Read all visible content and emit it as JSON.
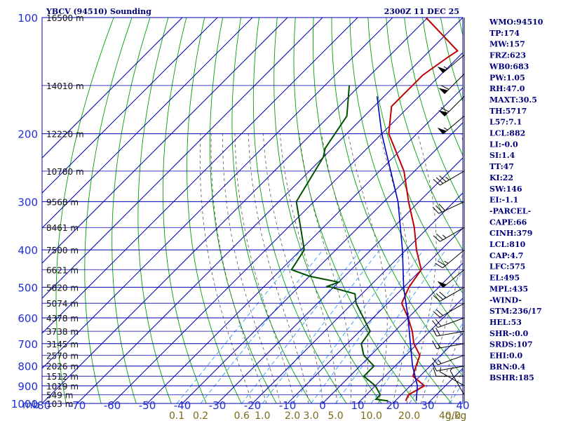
{
  "header": {
    "station": "YBCV (94510) Sounding",
    "time": "2300Z 11 DEC 25"
  },
  "indices": [
    "WMO:94510",
    "TP:174",
    "MW:157",
    "FRZ:623",
    "WB0:683",
    "PW:1.05",
    "RH:47.0",
    "MAXT:30.5",
    "TH:5717",
    "L57:7.1",
    "LCL:882",
    "LI:-0.0",
    "SI:1.4",
    "TT:47",
    "KI:22",
    "SW:146",
    "EI:-1.1",
    "-PARCEL-",
    "CAPE:66",
    "CINH:379",
    "LCL:810",
    "CAP:4.7",
    "LFC:575",
    "EL:495",
    "MPL:435",
    "-WIND-",
    "STM:236/17",
    "HEL:53",
    "SHR-:0.0",
    "SRDS:107",
    "EHI:0.0",
    "BRN:0.4",
    "BSHR:185"
  ],
  "colors": {
    "grid": "#0000b0",
    "dry_adiabat": "#00a000",
    "moist_adiabat": "#555555",
    "mixing_ratio": "#3399ff",
    "temperature": "#c00000",
    "dewpoint": "#005000",
    "parcel": "#0000c0",
    "wind": "#000000"
  },
  "chart_data": {
    "type": "line",
    "title": "YBCV (94510) Sounding",
    "subtitle": "2300Z 11 DEC 25",
    "xlabel": "",
    "ylabel": "mb",
    "pressure_ticks": [
      100,
      200,
      300,
      400,
      500,
      600,
      700,
      800,
      900,
      1000
    ],
    "temperature_ticks": [
      -80,
      -70,
      -60,
      -50,
      -40,
      -30,
      -20,
      -10,
      0,
      10,
      20,
      30,
      40
    ],
    "height_labels": [
      {
        "p": 100,
        "label": "16500 m"
      },
      {
        "p": 150,
        "label": "14010 m"
      },
      {
        "p": 200,
        "label": "12220 m"
      },
      {
        "p": 250,
        "label": "10780 m"
      },
      {
        "p": 300,
        "label": "9568 m"
      },
      {
        "p": 350,
        "label": "8461 m"
      },
      {
        "p": 400,
        "label": "7500 m"
      },
      {
        "p": 450,
        "label": "6621 m"
      },
      {
        "p": 500,
        "label": "5820 m"
      },
      {
        "p": 550,
        "label": "5074 m"
      },
      {
        "p": 600,
        "label": "4378 m"
      },
      {
        "p": 650,
        "label": "3738 m"
      },
      {
        "p": 700,
        "label": "3145 m"
      },
      {
        "p": 750,
        "label": "2570 m"
      },
      {
        "p": 800,
        "label": "2026 m"
      },
      {
        "p": 850,
        "label": "1512 m"
      },
      {
        "p": 900,
        "label": "1019 m"
      },
      {
        "p": 950,
        "label": "549 m"
      },
      {
        "p": 1000,
        "label": "103 m"
      }
    ],
    "mixing_ratio_labels": [
      "0.1",
      "0.2",
      "0.6",
      "1.0",
      "2.0",
      "3.0",
      "5.0",
      "10.0",
      "20.0",
      "40.0",
      "g/kg"
    ],
    "mixing_ratio_values": [
      0.1,
      0.2,
      0.6,
      1.0,
      2.0,
      3.0,
      5.0,
      10.0,
      20.0,
      40.0
    ],
    "series": [
      {
        "name": "",
        "key": "temperature",
        "points": [
          [
            100,
            -80.5
          ],
          [
            122,
            -62
          ],
          [
            127,
            -63
          ],
          [
            141,
            -65
          ],
          [
            170,
            -65
          ],
          [
            200,
            -58
          ],
          [
            250,
            -43
          ],
          [
            300,
            -33
          ],
          [
            350,
            -24
          ],
          [
            400,
            -17
          ],
          [
            450,
            -10
          ],
          [
            500,
            -8.5
          ],
          [
            550,
            -6
          ],
          [
            600,
            0
          ],
          [
            650,
            5
          ],
          [
            700,
            9
          ],
          [
            750,
            14
          ],
          [
            800,
            16
          ],
          [
            850,
            18
          ],
          [
            900,
            24
          ],
          [
            950,
            22
          ],
          [
            985,
            23
          ]
        ]
      },
      {
        "name": "",
        "key": "dewpoint",
        "points": [
          [
            150,
            -83
          ],
          [
            180,
            -75
          ],
          [
            218,
            -72
          ],
          [
            230,
            -70
          ],
          [
            300,
            -65
          ],
          [
            400,
            -49
          ],
          [
            450,
            -47
          ],
          [
            468,
            -40
          ],
          [
            485,
            -30
          ],
          [
            497,
            -32
          ],
          [
            520,
            -22
          ],
          [
            550,
            -19
          ],
          [
            650,
            -7
          ],
          [
            700,
            -6
          ],
          [
            750,
            -2
          ],
          [
            800,
            4
          ],
          [
            850,
            4
          ],
          [
            900,
            10
          ],
          [
            950,
            14
          ],
          [
            975,
            14
          ],
          [
            985,
            18
          ]
        ]
      },
      {
        "name": "",
        "key": "parcel",
        "points": [
          [
            160,
            -72
          ],
          [
            200,
            -60
          ],
          [
            300,
            -36
          ],
          [
            400,
            -21
          ],
          [
            500,
            -10
          ],
          [
            600,
            0
          ],
          [
            700,
            8
          ],
          [
            800,
            15
          ],
          [
            900,
            22
          ],
          [
            985,
            26
          ]
        ]
      }
    ],
    "wind_barbs": [
      {
        "p": 125,
        "dir": 230,
        "spd": 55
      },
      {
        "p": 140,
        "dir": 225,
        "spd": 60
      },
      {
        "p": 160,
        "dir": 225,
        "spd": 60
      },
      {
        "p": 180,
        "dir": 230,
        "spd": 55
      },
      {
        "p": 250,
        "dir": 240,
        "spd": 35
      },
      {
        "p": 300,
        "dir": 245,
        "spd": 30
      },
      {
        "p": 350,
        "dir": 240,
        "spd": 25
      },
      {
        "p": 400,
        "dir": 230,
        "spd": 25
      },
      {
        "p": 450,
        "dir": 230,
        "spd": 50
      },
      {
        "p": 500,
        "dir": 240,
        "spd": 30
      },
      {
        "p": 550,
        "dir": 240,
        "spd": 20
      },
      {
        "p": 600,
        "dir": 250,
        "spd": 20
      },
      {
        "p": 650,
        "dir": 260,
        "spd": 20
      },
      {
        "p": 700,
        "dir": 260,
        "spd": 15
      },
      {
        "p": 750,
        "dir": 250,
        "spd": 15
      },
      {
        "p": 800,
        "dir": 260,
        "spd": 10
      },
      {
        "p": 850,
        "dir": 270,
        "spd": 10
      },
      {
        "p": 900,
        "dir": 300,
        "spd": 5
      },
      {
        "p": 950,
        "dir": 330,
        "spd": 5
      }
    ],
    "xlim": [
      -80,
      40
    ],
    "ylim": [
      100,
      1000
    ],
    "grid": true,
    "yscale": "log"
  }
}
